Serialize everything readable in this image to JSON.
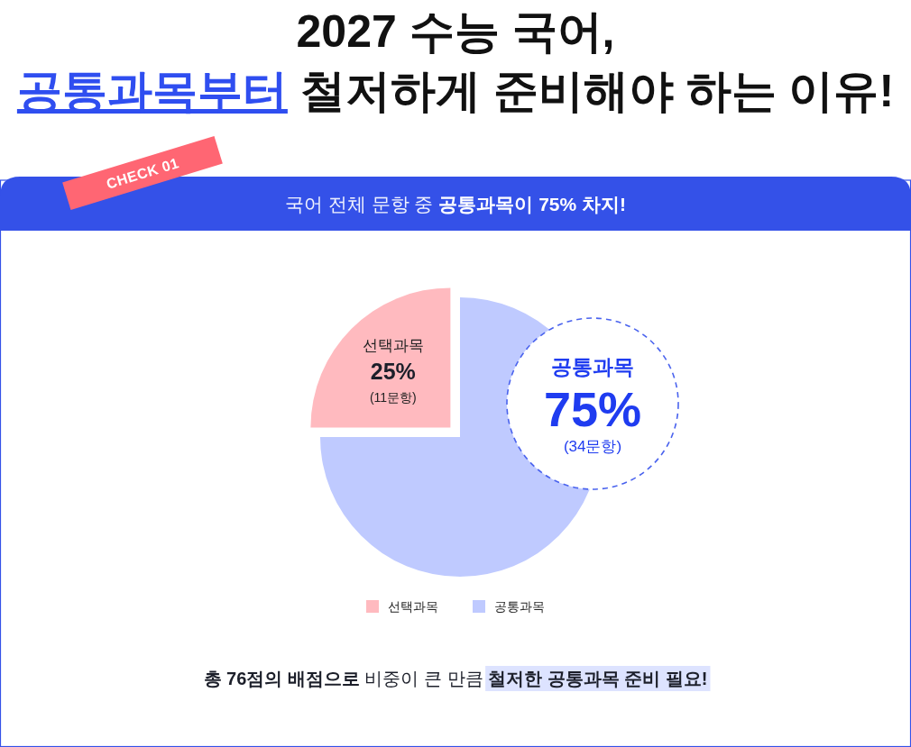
{
  "chart_data": {
    "type": "pie",
    "title": "2027 수능 국어,\n공통과목부터 철저하게 준비해야 하는 이유!",
    "subtitle": "국어 전체 문항 중 공통과목이 75% 차지!",
    "categories": [
      "선택과목",
      "공통과목"
    ],
    "values": [
      25,
      75
    ],
    "colors": [
      "#ffbabf",
      "#bfcaff"
    ],
    "value_labels": [
      "25%",
      "75%"
    ],
    "legend": "bottom",
    "annotations": [
      "CHECK 01",
      {
        "text": "(11문항)",
        "x": "선택과목"
      },
      {
        "text": "(34문항)",
        "x": "공통과목"
      },
      "총 76점의 배점으로 비중이 큰 만큼 철저한 공통과목 준비 필요!"
    ]
  }
}
